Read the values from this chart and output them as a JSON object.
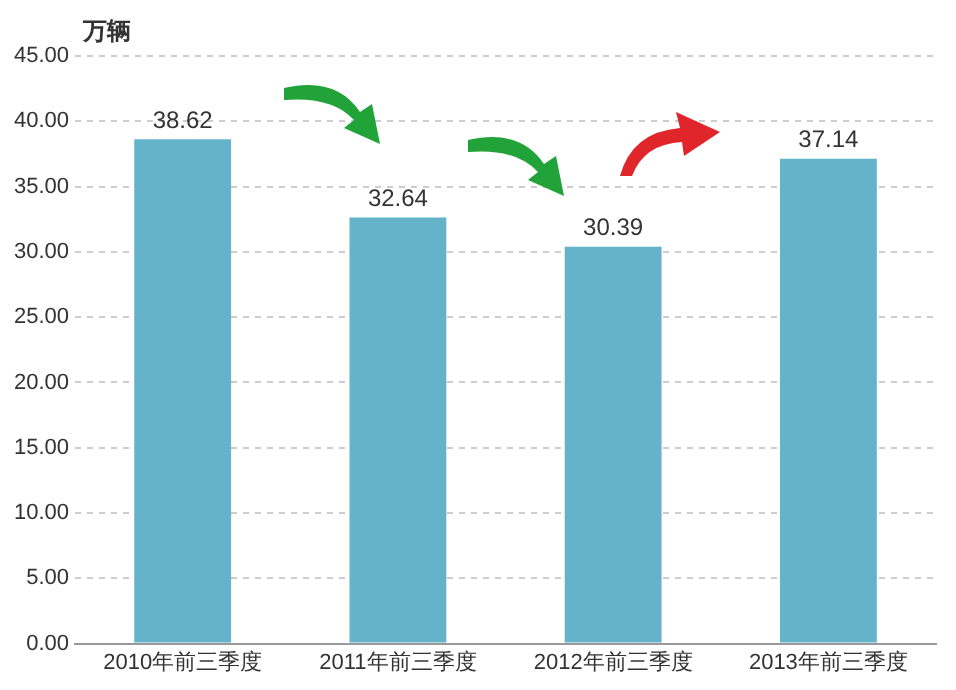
{
  "chart_data": {
    "type": "bar",
    "ylabel": "万辆",
    "categories": [
      "2010年前三季度",
      "2011年前三季度",
      "2012年前三季度",
      "2013年前三季度"
    ],
    "values": [
      38.62,
      32.64,
      30.39,
      37.14
    ],
    "color": "#65b3cb",
    "ylim": [
      0,
      45
    ],
    "yticks": [
      {
        "value": 0,
        "label": "0.00"
      },
      {
        "value": 5,
        "label": "5.00"
      },
      {
        "value": 10,
        "label": "10.00"
      },
      {
        "value": 15,
        "label": "15.00"
      },
      {
        "value": 20,
        "label": "20.00"
      },
      {
        "value": 25,
        "label": "25.00"
      },
      {
        "value": 30,
        "label": "30.00"
      },
      {
        "value": 35,
        "label": "35.00"
      },
      {
        "value": 40,
        "label": "40.00"
      },
      {
        "value": 45,
        "label": "45.00"
      }
    ],
    "grid": "y",
    "data_labels": true
  }
}
